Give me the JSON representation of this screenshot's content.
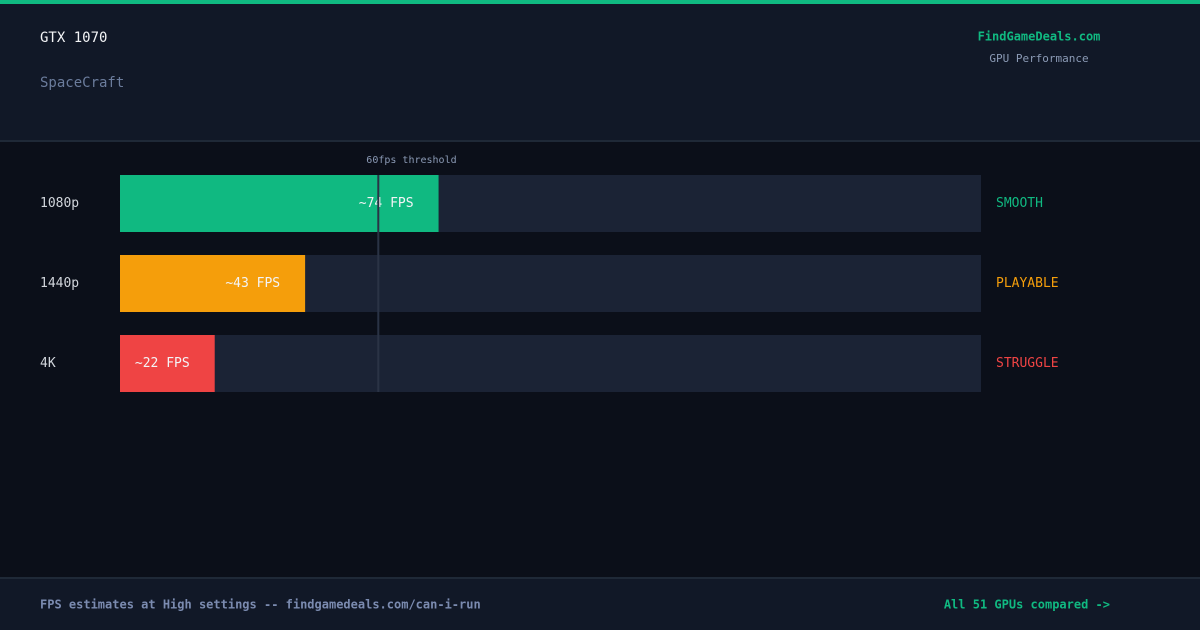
{
  "chart_data": {
    "type": "bar",
    "orientation": "horizontal",
    "title": "GTX 1070",
    "subtitle": "SpaceCraft",
    "categories": [
      "1080p",
      "1440p",
      "4K"
    ],
    "values": [
      74,
      43,
      22
    ],
    "value_labels": [
      "~74 FPS",
      "~43 FPS",
      "~22 FPS"
    ],
    "colors": [
      "#10b981",
      "#f59e0b",
      "#ef4444"
    ],
    "status_labels": [
      "SMOOTH",
      "PLAYABLE",
      "STRUGGLE"
    ],
    "xlim": [
      0,
      200
    ],
    "threshold": {
      "value": 60,
      "label": "60fps threshold"
    }
  },
  "brand": {
    "name": "FindGameDeals.com",
    "tagline": "GPU Performance"
  },
  "footer": {
    "note": "FPS estimates at High settings -- findgamedeals.com/can-i-run",
    "link": "All 51 GPUs compared ->"
  }
}
